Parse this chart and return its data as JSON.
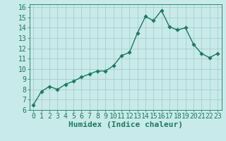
{
  "x": [
    0,
    1,
    2,
    3,
    4,
    5,
    6,
    7,
    8,
    9,
    10,
    11,
    12,
    13,
    14,
    15,
    16,
    17,
    18,
    19,
    20,
    21,
    22,
    23
  ],
  "y": [
    6.5,
    7.8,
    8.3,
    8.0,
    8.5,
    8.8,
    9.2,
    9.5,
    9.8,
    9.8,
    10.3,
    11.3,
    11.6,
    13.5,
    15.1,
    14.7,
    15.7,
    14.1,
    13.8,
    14.0,
    12.4,
    11.5,
    11.1,
    11.5
  ],
  "xlabel": "Humidex (Indice chaleur)",
  "xlim": [
    -0.5,
    23.5
  ],
  "ylim": [
    6,
    16.3
  ],
  "yticks": [
    6,
    7,
    8,
    9,
    10,
    11,
    12,
    13,
    14,
    15,
    16
  ],
  "xticks": [
    0,
    1,
    2,
    3,
    4,
    5,
    6,
    7,
    8,
    9,
    10,
    11,
    12,
    13,
    14,
    15,
    16,
    17,
    18,
    19,
    20,
    21,
    22,
    23
  ],
  "line_color": "#1a7a5e",
  "marker_color": "#1a7a5e",
  "bg_color": "#c8eaea",
  "grid_color": "#a8cece",
  "xlabel_fontsize": 8,
  "tick_fontsize": 7,
  "marker_size": 2.8,
  "line_width": 1.0
}
